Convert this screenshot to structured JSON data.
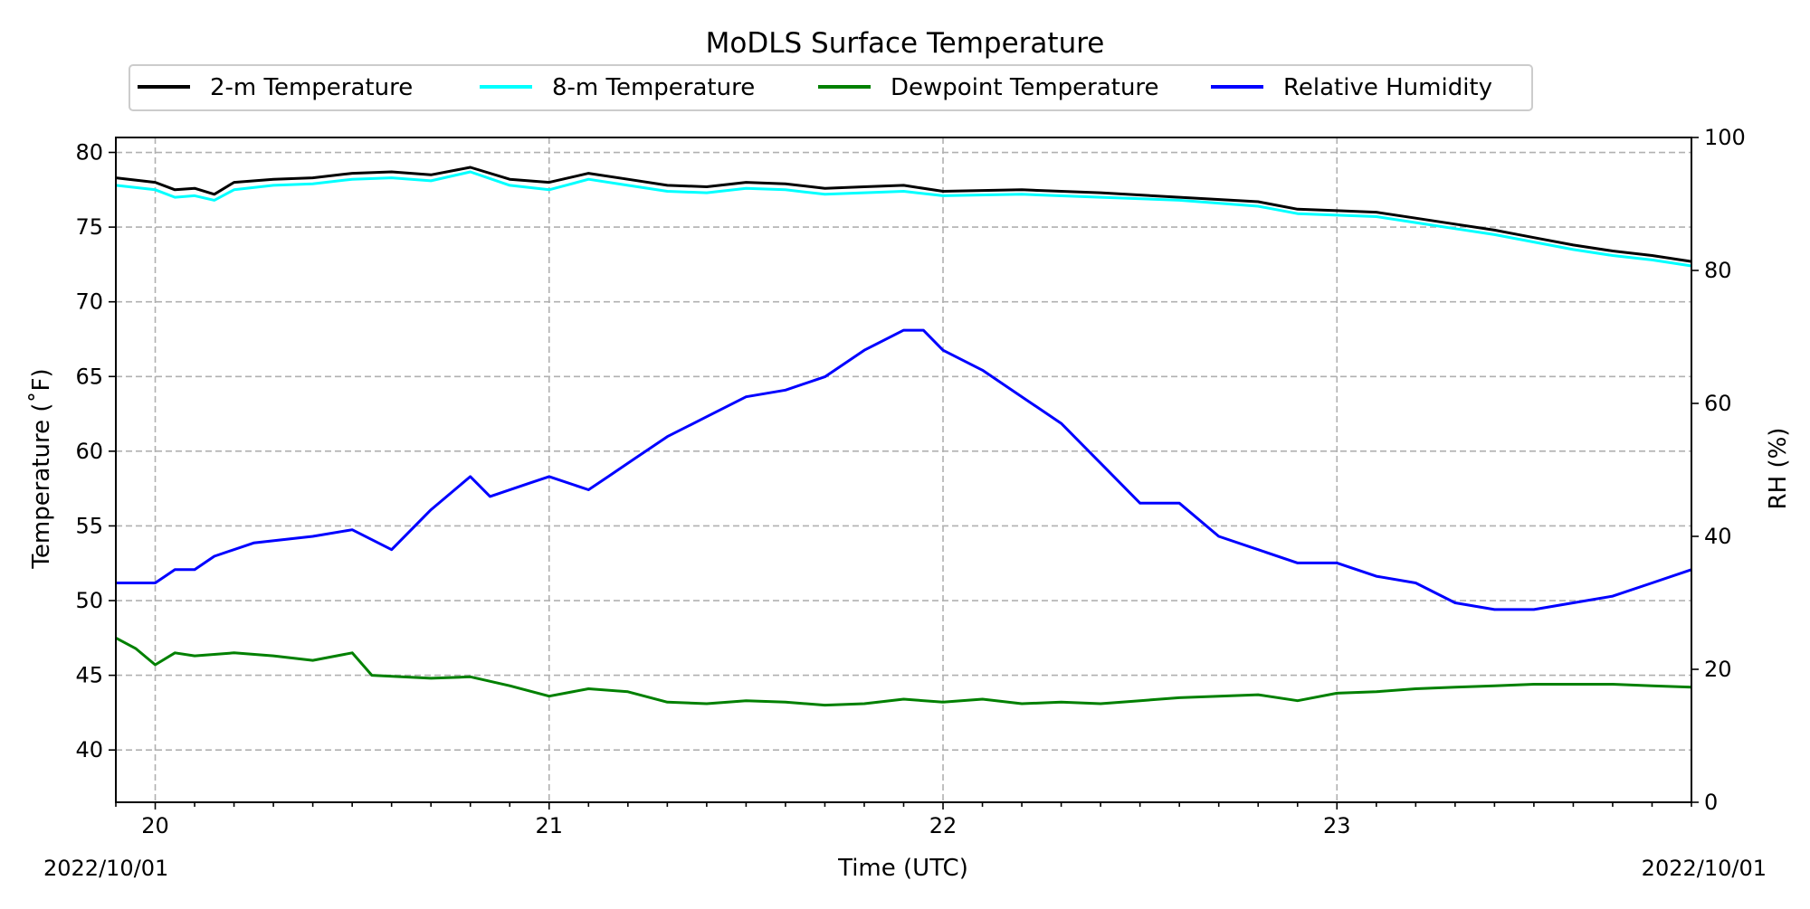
{
  "chart_data": {
    "type": "line",
    "title": "MoDLS Surface Temperature",
    "xlabel": "Time (UTC)",
    "ylabel": "Temperature ($^\\circ$F)",
    "ylabel_display": "Temperature (˚F)",
    "y2label": "RH (%)",
    "x_start_label": "2022/10/01",
    "x_end_label": "2022/10/01",
    "xlim": [
      19.9,
      23.9
    ],
    "xticks": [
      20,
      21,
      22,
      23
    ],
    "xtick_labels": [
      "20",
      "21",
      "22",
      "23"
    ],
    "ylim": [
      36.5,
      81
    ],
    "yticks": [
      40,
      45,
      50,
      55,
      60,
      65,
      70,
      75,
      80
    ],
    "y2lim": [
      0,
      100
    ],
    "y2ticks": [
      0,
      20,
      40,
      60,
      80,
      100
    ],
    "grid": true,
    "legend_placement": "top, above plot, 4 columns",
    "series": [
      {
        "name": "2-m Temperature",
        "color": "#000000",
        "axis": "left",
        "x": [
          19.9,
          20.0,
          20.05,
          20.1,
          20.15,
          20.2,
          20.3,
          20.4,
          20.5,
          20.6,
          20.7,
          20.8,
          20.9,
          21.0,
          21.1,
          21.2,
          21.3,
          21.4,
          21.5,
          21.6,
          21.7,
          21.8,
          21.9,
          22.0,
          22.2,
          22.4,
          22.6,
          22.8,
          22.9,
          23.0,
          23.1,
          23.2,
          23.3,
          23.4,
          23.5,
          23.6,
          23.7,
          23.8,
          23.9
        ],
        "y": [
          78.3,
          78.0,
          77.5,
          77.6,
          77.2,
          78.0,
          78.2,
          78.3,
          78.6,
          78.7,
          78.5,
          79.0,
          78.2,
          78.0,
          78.6,
          78.2,
          77.8,
          77.7,
          78.0,
          77.9,
          77.6,
          77.7,
          77.8,
          77.4,
          77.5,
          77.3,
          77.0,
          76.7,
          76.2,
          76.1,
          76.0,
          75.6,
          75.2,
          74.8,
          74.3,
          73.8,
          73.4,
          73.1,
          72.7
        ]
      },
      {
        "name": "8-m Temperature",
        "color": "#00ffff",
        "axis": "left",
        "x": [
          19.9,
          20.0,
          20.05,
          20.1,
          20.15,
          20.2,
          20.3,
          20.4,
          20.5,
          20.6,
          20.7,
          20.8,
          20.9,
          21.0,
          21.1,
          21.2,
          21.3,
          21.4,
          21.5,
          21.6,
          21.7,
          21.8,
          21.9,
          22.0,
          22.2,
          22.4,
          22.6,
          22.8,
          22.9,
          23.0,
          23.1,
          23.2,
          23.3,
          23.4,
          23.5,
          23.6,
          23.7,
          23.8,
          23.9
        ],
        "y": [
          77.8,
          77.5,
          77.0,
          77.1,
          76.8,
          77.5,
          77.8,
          77.9,
          78.2,
          78.3,
          78.1,
          78.7,
          77.8,
          77.5,
          78.2,
          77.8,
          77.4,
          77.3,
          77.6,
          77.5,
          77.2,
          77.3,
          77.4,
          77.1,
          77.2,
          77.0,
          76.8,
          76.4,
          75.9,
          75.8,
          75.7,
          75.3,
          74.9,
          74.5,
          74.0,
          73.5,
          73.1,
          72.8,
          72.4
        ]
      },
      {
        "name": "Dewpoint Temperature",
        "color": "#008000",
        "axis": "left",
        "x": [
          19.9,
          19.95,
          20.0,
          20.05,
          20.1,
          20.2,
          20.3,
          20.4,
          20.5,
          20.55,
          20.7,
          20.8,
          20.9,
          21.0,
          21.1,
          21.2,
          21.3,
          21.4,
          21.5,
          21.6,
          21.7,
          21.8,
          21.9,
          22.0,
          22.1,
          22.2,
          22.3,
          22.4,
          22.5,
          22.6,
          22.7,
          22.8,
          22.9,
          23.0,
          23.1,
          23.2,
          23.3,
          23.4,
          23.5,
          23.6,
          23.7,
          23.8,
          23.9
        ],
        "y": [
          47.5,
          46.8,
          45.7,
          46.5,
          46.3,
          46.5,
          46.3,
          46.0,
          46.5,
          45.0,
          44.8,
          44.9,
          44.3,
          43.6,
          44.1,
          43.9,
          43.2,
          43.1,
          43.3,
          43.2,
          43.0,
          43.1,
          43.4,
          43.2,
          43.4,
          43.1,
          43.2,
          43.1,
          43.3,
          43.5,
          43.6,
          43.7,
          43.3,
          43.8,
          43.9,
          44.1,
          44.2,
          44.3,
          44.4,
          44.4,
          44.4,
          44.3,
          44.2
        ]
      },
      {
        "name": "Relative Humidity",
        "color": "#0000ff",
        "axis": "right",
        "x": [
          19.9,
          20.0,
          20.05,
          20.1,
          20.15,
          20.25,
          20.4,
          20.5,
          20.6,
          20.7,
          20.8,
          20.85,
          20.95,
          21.0,
          21.1,
          21.15,
          21.2,
          21.3,
          21.4,
          21.5,
          21.6,
          21.7,
          21.8,
          21.9,
          21.95,
          22.0,
          22.1,
          22.2,
          22.3,
          22.4,
          22.5,
          22.6,
          22.7,
          22.8,
          22.9,
          23.0,
          23.1,
          23.2,
          23.3,
          23.4,
          23.5,
          23.6,
          23.7,
          23.8,
          23.9
        ],
        "y": [
          33.0,
          33.0,
          35.0,
          35.0,
          37.0,
          39.0,
          40.0,
          41.0,
          38.0,
          44.0,
          49.0,
          46.0,
          48.0,
          49.0,
          47.0,
          49.0,
          51.0,
          55.0,
          58.0,
          61.0,
          62.0,
          64.0,
          68.0,
          71.0,
          71.0,
          68.0,
          65.0,
          61.0,
          57.0,
          51.0,
          45.0,
          45.0,
          40.0,
          38.0,
          36.0,
          36.0,
          34.0,
          33.0,
          30.0,
          29.0,
          29.0,
          30.0,
          31.0,
          33.0,
          35.0
        ]
      }
    ]
  }
}
